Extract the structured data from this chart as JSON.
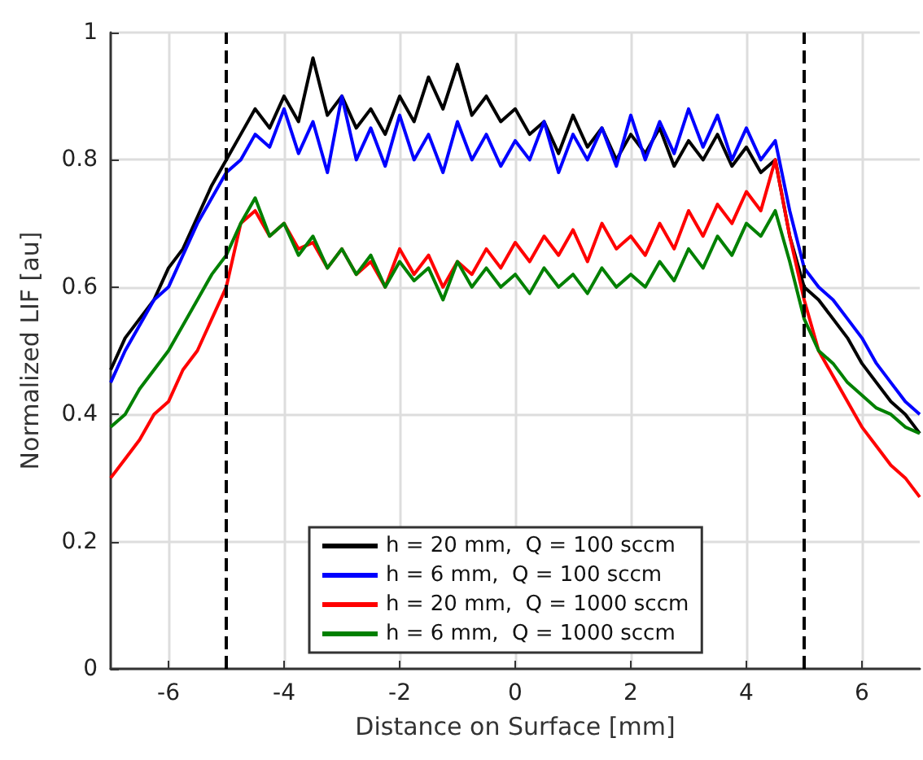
{
  "chart_data": {
    "type": "line",
    "xlabel": "Distance on Surface [mm]",
    "ylabel": "Normalized LIF [au]",
    "x": [
      -7,
      -6.75,
      -6.5,
      -6.25,
      -6,
      -5.75,
      -5.5,
      -5.25,
      -5,
      -4.75,
      -4.5,
      -4.25,
      -4,
      -3.75,
      -3.5,
      -3.25,
      -3,
      -2.75,
      -2.5,
      -2.25,
      -2,
      -1.75,
      -1.5,
      -1.25,
      -1,
      -0.75,
      -0.5,
      -0.25,
      0,
      0.25,
      0.5,
      0.75,
      1,
      1.25,
      1.5,
      1.75,
      2,
      2.25,
      2.5,
      2.75,
      3,
      3.25,
      3.5,
      3.75,
      4,
      4.25,
      4.5,
      4.75,
      5,
      5.25,
      5.5,
      5.75,
      6,
      6.25,
      6.5,
      6.75,
      7
    ],
    "series": [
      {
        "name": "h = 20 mm,  Q = 100 sccm",
        "color": "#000000",
        "values": [
          0.47,
          0.52,
          0.55,
          0.58,
          0.63,
          0.66,
          0.71,
          0.76,
          0.8,
          0.84,
          0.88,
          0.85,
          0.9,
          0.86,
          0.96,
          0.87,
          0.9,
          0.85,
          0.88,
          0.84,
          0.9,
          0.86,
          0.93,
          0.88,
          0.95,
          0.87,
          0.9,
          0.86,
          0.88,
          0.84,
          0.86,
          0.81,
          0.87,
          0.82,
          0.85,
          0.8,
          0.84,
          0.81,
          0.85,
          0.79,
          0.83,
          0.8,
          0.84,
          0.79,
          0.82,
          0.78,
          0.8,
          0.68,
          0.6,
          0.58,
          0.55,
          0.52,
          0.48,
          0.45,
          0.42,
          0.4,
          0.37
        ]
      },
      {
        "name": "h = 6 mm,  Q = 100 sccm",
        "color": "#0000ff",
        "values": [
          0.45,
          0.5,
          0.54,
          0.58,
          0.6,
          0.65,
          0.7,
          0.74,
          0.78,
          0.8,
          0.84,
          0.82,
          0.88,
          0.81,
          0.86,
          0.78,
          0.9,
          0.8,
          0.85,
          0.79,
          0.87,
          0.8,
          0.84,
          0.78,
          0.86,
          0.8,
          0.84,
          0.79,
          0.83,
          0.8,
          0.86,
          0.78,
          0.84,
          0.8,
          0.85,
          0.79,
          0.87,
          0.8,
          0.86,
          0.81,
          0.88,
          0.82,
          0.87,
          0.8,
          0.85,
          0.8,
          0.83,
          0.72,
          0.63,
          0.6,
          0.58,
          0.55,
          0.52,
          0.48,
          0.45,
          0.42,
          0.4
        ]
      },
      {
        "name": "h = 20 mm,  Q = 1000 sccm",
        "color": "#ff0000",
        "values": [
          0.3,
          0.33,
          0.36,
          0.4,
          0.42,
          0.47,
          0.5,
          0.55,
          0.6,
          0.7,
          0.72,
          0.68,
          0.7,
          0.66,
          0.67,
          0.63,
          0.66,
          0.62,
          0.64,
          0.6,
          0.66,
          0.62,
          0.65,
          0.6,
          0.64,
          0.62,
          0.66,
          0.63,
          0.67,
          0.64,
          0.68,
          0.65,
          0.69,
          0.64,
          0.7,
          0.66,
          0.68,
          0.65,
          0.7,
          0.66,
          0.72,
          0.68,
          0.73,
          0.7,
          0.75,
          0.72,
          0.8,
          0.68,
          0.58,
          0.5,
          0.46,
          0.42,
          0.38,
          0.35,
          0.32,
          0.3,
          0.27
        ]
      },
      {
        "name": "h = 6 mm,  Q = 1000 sccm",
        "color": "#008000",
        "values": [
          0.38,
          0.4,
          0.44,
          0.47,
          0.5,
          0.54,
          0.58,
          0.62,
          0.65,
          0.7,
          0.74,
          0.68,
          0.7,
          0.65,
          0.68,
          0.63,
          0.66,
          0.62,
          0.65,
          0.6,
          0.64,
          0.61,
          0.63,
          0.58,
          0.64,
          0.6,
          0.63,
          0.6,
          0.62,
          0.59,
          0.63,
          0.6,
          0.62,
          0.59,
          0.63,
          0.6,
          0.62,
          0.6,
          0.64,
          0.61,
          0.66,
          0.63,
          0.68,
          0.65,
          0.7,
          0.68,
          0.72,
          0.64,
          0.55,
          0.5,
          0.48,
          0.45,
          0.43,
          0.41,
          0.4,
          0.38,
          0.37
        ]
      }
    ],
    "xlim": [
      -7,
      7
    ],
    "xticks": [
      -6,
      -4,
      -2,
      0,
      2,
      4,
      6
    ],
    "ylim": [
      0,
      1
    ],
    "yticks": [
      0,
      0.2,
      0.4,
      0.6,
      0.8,
      1
    ],
    "ref_lines": [
      {
        "axis": "x",
        "value": -5,
        "color": "#000000",
        "line_style": "dashed"
      },
      {
        "axis": "x",
        "value": 5,
        "color": "#000000",
        "line_style": "dashed"
      }
    ],
    "grid": true,
    "legend": "bottom",
    "marker": "none",
    "line_style": "solid"
  }
}
